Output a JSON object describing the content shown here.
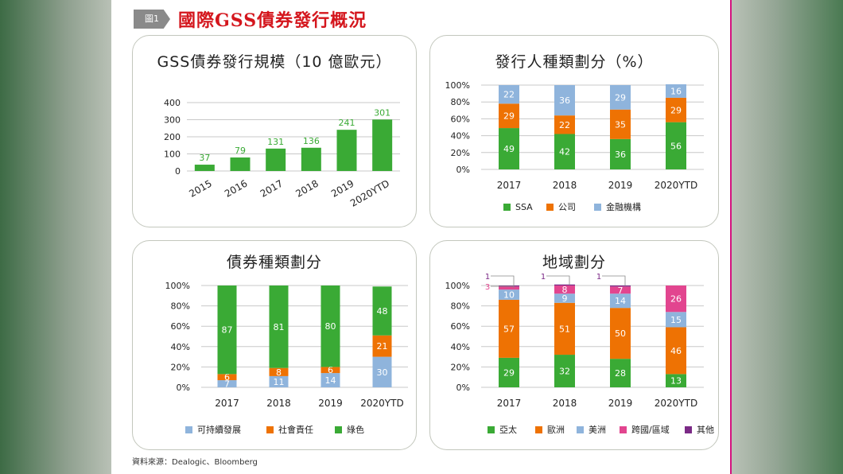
{
  "header": {
    "figure_tag": "圖1",
    "title": "國際GSS債券發行概況"
  },
  "source": "資料來源：Dealogic、Bloomberg",
  "colors": {
    "green": "#3aaa35",
    "orange": "#ee7203",
    "blue": "#8fb4dc",
    "pink": "#e2458f",
    "purple": "#7b2a86",
    "label_green": "#3aaa35",
    "frame": "#c3c7bd"
  },
  "chart_data": [
    {
      "id": "issuance",
      "type": "bar",
      "title": "GSS債券發行規模（10 億歐元）",
      "categories": [
        "2015",
        "2016",
        "2017",
        "2018",
        "2019",
        "2020YTD"
      ],
      "values": [
        37,
        79,
        131,
        136,
        241,
        301
      ],
      "ylim": [
        0,
        400
      ],
      "yticks": [
        "0",
        "100",
        "200",
        "300",
        "400"
      ],
      "grid": true
    },
    {
      "id": "issuer",
      "type": "bar",
      "stacked": true,
      "title": "發行人種類劃分（%）",
      "categories": [
        "2017",
        "2018",
        "2019",
        "2020YTD"
      ],
      "ylim": [
        0,
        100
      ],
      "yticks": [
        "0%",
        "20%",
        "40%",
        "60%",
        "80%",
        "100%"
      ],
      "series": [
        {
          "name": "SSA",
          "color": "green",
          "values": [
            49,
            42,
            36,
            56
          ]
        },
        {
          "name": "公司",
          "color": "orange",
          "values": [
            29,
            22,
            35,
            29
          ]
        },
        {
          "name": "金融機構",
          "color": "blue",
          "values": [
            22,
            36,
            29,
            16
          ]
        }
      ],
      "legend": "bottom"
    },
    {
      "id": "bondtype",
      "type": "bar",
      "stacked": true,
      "title": "債券種類劃分",
      "categories": [
        "2017",
        "2018",
        "2019",
        "2020YTD"
      ],
      "ylim": [
        0,
        100
      ],
      "yticks": [
        "0%",
        "20%",
        "40%",
        "60%",
        "80%",
        "100%"
      ],
      "series": [
        {
          "name": "可持續發展",
          "color": "blue",
          "values": [
            7,
            11,
            14,
            30
          ]
        },
        {
          "name": "社會責任",
          "color": "orange",
          "values": [
            6,
            8,
            6,
            21
          ]
        },
        {
          "name": "綠色",
          "color": "green",
          "values": [
            87,
            81,
            80,
            48
          ]
        }
      ],
      "legend": "bottom"
    },
    {
      "id": "region",
      "type": "bar",
      "stacked": true,
      "title": "地域劃分",
      "categories": [
        "2017",
        "2018",
        "2019",
        "2020YTD"
      ],
      "ylim": [
        0,
        100
      ],
      "yticks": [
        "0%",
        "20%",
        "40%",
        "60%",
        "80%",
        "100%"
      ],
      "series": [
        {
          "name": "亞太",
          "color": "green",
          "values": [
            29,
            32,
            28,
            13
          ]
        },
        {
          "name": "歐洲",
          "color": "orange",
          "values": [
            57,
            51,
            50,
            46
          ]
        },
        {
          "name": "美洲",
          "color": "blue",
          "values": [
            10,
            9,
            14,
            15
          ]
        },
        {
          "name": "跨國/區域",
          "color": "pink",
          "values": [
            3,
            8,
            7,
            26
          ]
        },
        {
          "name": "其他",
          "color": "purple",
          "values": [
            1,
            1,
            1,
            0
          ]
        }
      ],
      "callouts": [
        {
          "series": "其他",
          "category": "2017",
          "text": "1"
        },
        {
          "series": "跨國/區域",
          "category": "2017",
          "text": "3"
        },
        {
          "series": "其他",
          "category": "2018",
          "text": "1"
        },
        {
          "series": "其他",
          "category": "2019",
          "text": "1"
        }
      ],
      "legend": "bottom"
    }
  ]
}
